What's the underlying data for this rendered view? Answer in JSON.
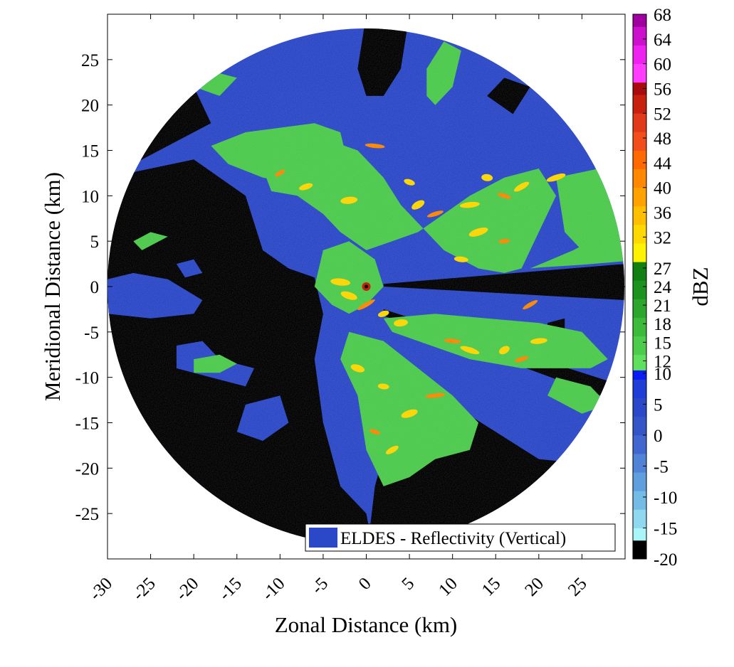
{
  "chart_data": {
    "type": "heatmap",
    "xlabel": "Zonal Distance (km)",
    "ylabel": "Meridional Distance (km)",
    "xlim": [
      -30,
      30
    ],
    "ylim": [
      -30,
      30
    ],
    "x_ticks": [
      "-30",
      "-25",
      "-20",
      "-15",
      "-10",
      "-5",
      "0",
      "5",
      "10",
      "15",
      "20",
      "25"
    ],
    "y_ticks": [
      "25",
      "20",
      "15",
      "10",
      "5",
      "0",
      "-5",
      "-10",
      "-15",
      "-20",
      "-25"
    ],
    "colorbar": {
      "label": "dBZ",
      "range": [
        -20,
        68
      ],
      "ticks": [
        "68",
        "64",
        "60",
        "56",
        "52",
        "48",
        "44",
        "40",
        "36",
        "32",
        "27",
        "24",
        "21",
        "18",
        "15",
        "12",
        "10",
        "5",
        "0",
        "-5",
        "-10",
        "-15",
        "-20"
      ],
      "bands": [
        {
          "from": -20,
          "to": -17,
          "color": "#000000"
        },
        {
          "from": -17,
          "to": -15,
          "color": "#aaf5f8"
        },
        {
          "from": -15,
          "to": -12,
          "color": "#8fd8ef"
        },
        {
          "from": -12,
          "to": -9,
          "color": "#74bce6"
        },
        {
          "from": -9,
          "to": -6,
          "color": "#5f9fdd"
        },
        {
          "from": -6,
          "to": -3,
          "color": "#5082d6"
        },
        {
          "from": -3,
          "to": 0,
          "color": "#4266cf"
        },
        {
          "from": 0,
          "to": 3,
          "color": "#3554c8"
        },
        {
          "from": 3,
          "to": 6,
          "color": "#2b48c9"
        },
        {
          "from": 6,
          "to": 9,
          "color": "#1f3ed6"
        },
        {
          "from": 9,
          "to": 10.5,
          "color": "#0a1cf2"
        },
        {
          "from": 10.5,
          "to": 13,
          "color": "#5ee05e"
        },
        {
          "from": 13,
          "to": 16,
          "color": "#4ccc4c"
        },
        {
          "from": 16,
          "to": 19,
          "color": "#3cba3c"
        },
        {
          "from": 19,
          "to": 22,
          "color": "#2ca62c"
        },
        {
          "from": 22,
          "to": 25,
          "color": "#1e921e"
        },
        {
          "from": 25,
          "to": 28,
          "color": "#117f11"
        },
        {
          "from": 28,
          "to": 31,
          "color": "#fff200"
        },
        {
          "from": 31,
          "to": 34,
          "color": "#ffd800"
        },
        {
          "from": 34,
          "to": 37,
          "color": "#ffbf00"
        },
        {
          "from": 37,
          "to": 40,
          "color": "#ffa200"
        },
        {
          "from": 40,
          "to": 43,
          "color": "#ff8800"
        },
        {
          "from": 43,
          "to": 46,
          "color": "#ff6a00"
        },
        {
          "from": 46,
          "to": 49,
          "color": "#f24e1c"
        },
        {
          "from": 49,
          "to": 52,
          "color": "#e03a1a"
        },
        {
          "from": 52,
          "to": 55,
          "color": "#c8200f"
        },
        {
          "from": 55,
          "to": 57,
          "color": "#a80b0b"
        },
        {
          "from": 57,
          "to": 60,
          "color": "#ff3cff"
        },
        {
          "from": 60,
          "to": 63,
          "color": "#ee22ee"
        },
        {
          "from": 63,
          "to": 66,
          "color": "#cc11cc"
        },
        {
          "from": 66,
          "to": 68,
          "color": "#a000a0"
        }
      ]
    },
    "legend": {
      "label": "ELDES - Reflectivity (Vertical)",
      "color": "#2b48c9",
      "position": "bottom-right"
    },
    "scan": {
      "center": [
        0,
        0
      ],
      "radius_km": 30
    },
    "colors": {
      "background_blue": "#2b48c9",
      "green": "#4ccc4c",
      "yellow": "#ffd800",
      "orange": "#ff8800",
      "black": "#000000"
    }
  }
}
